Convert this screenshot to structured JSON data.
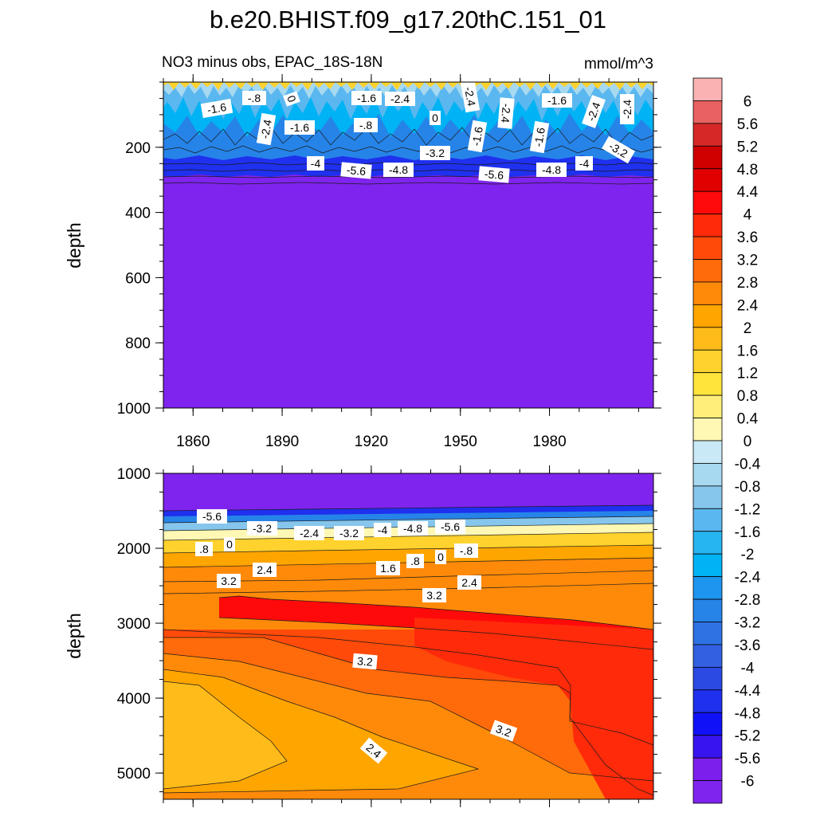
{
  "chart_data": {
    "type": "contour",
    "title": "b.e20.BHIST.f09_g17.20thC.151_01",
    "subtitle_left": "NO3 minus obs, EPAC_18S-18N",
    "subtitle_right": "mmol/m^3",
    "xlim": [
      1850,
      2015
    ],
    "x_ticks": [
      1860,
      1890,
      1920,
      1950,
      1980
    ],
    "x_tick_labels": [
      "1860",
      "1890",
      "1920",
      "1950",
      "1980"
    ],
    "top_panel": {
      "ylabel": "depth",
      "ylim": [
        0,
        1000
      ],
      "y_ticks": [
        200,
        400,
        600,
        800,
        1000
      ],
      "y_tick_labels": [
        "200",
        "400",
        "600",
        "800",
        "1000"
      ],
      "contour_labels": [
        "-1.6",
        "-.8",
        "0",
        "-2.4",
        "-1.6",
        "-1.6",
        "-2.4",
        "-.8",
        "0",
        "-2.4",
        "-1.6",
        "-2.4",
        "-1.6",
        "-1.6",
        "-2.4",
        "-2.4",
        "-4",
        "-5.6",
        "-4.8",
        "-3.2",
        "-5.6",
        "-4.8",
        "-4",
        "-3.2"
      ]
    },
    "bottom_panel": {
      "ylabel": "depth",
      "ylim": [
        1000,
        5350
      ],
      "y_ticks": [
        1000,
        2000,
        3000,
        4000,
        5000
      ],
      "y_tick_labels": [
        "1000",
        "2000",
        "3000",
        "4000",
        "5000"
      ],
      "contour_labels": [
        "-5.6",
        "-3.2",
        "-2.4",
        "-3.2",
        "-4",
        "-4.8",
        "-5.6",
        ".8",
        "0",
        "-.8",
        ".8",
        "0",
        "2.4",
        "1.6",
        "3.2",
        "2.4",
        "3.2",
        "3.2",
        "3.2",
        "2.4"
      ]
    },
    "colorbar": {
      "levels": [
        "6",
        "5.6",
        "5.2",
        "4.8",
        "4.4",
        "4",
        "3.6",
        "3.2",
        "2.8",
        "2.4",
        "2",
        "1.6",
        "1.2",
        "0.8",
        "0.4",
        "0",
        "-0.4",
        "-0.8",
        "-1.2",
        "-1.6",
        "-2",
        "-2.4",
        "-2.8",
        "-3.2",
        "-3.6",
        "-4",
        "-4.4",
        "-4.8",
        "-5.2",
        "-5.6",
        "-6"
      ],
      "colors": [
        "#fab2b2",
        "#e86262",
        "#d72828",
        "#cf0000",
        "#e00000",
        "#ff0a0a",
        "#ff2a0a",
        "#ff4a0a",
        "#ff6a0a",
        "#ff8a0a",
        "#ffa500",
        "#ffbb1a",
        "#ffd22d",
        "#ffe43c",
        "#ffef7a",
        "#fff8b4",
        "#c9e9f6",
        "#a7d9f0",
        "#86c6ec",
        "#5bb7ef",
        "#27b5f1",
        "#00b3f4",
        "#1e95ee",
        "#2684e8",
        "#2f72e4",
        "#3360e0",
        "#2b4ae4",
        "#1f30ee",
        "#1111f8",
        "#3814ef",
        "#7c1fed",
        "#7f24ee"
      ]
    }
  }
}
